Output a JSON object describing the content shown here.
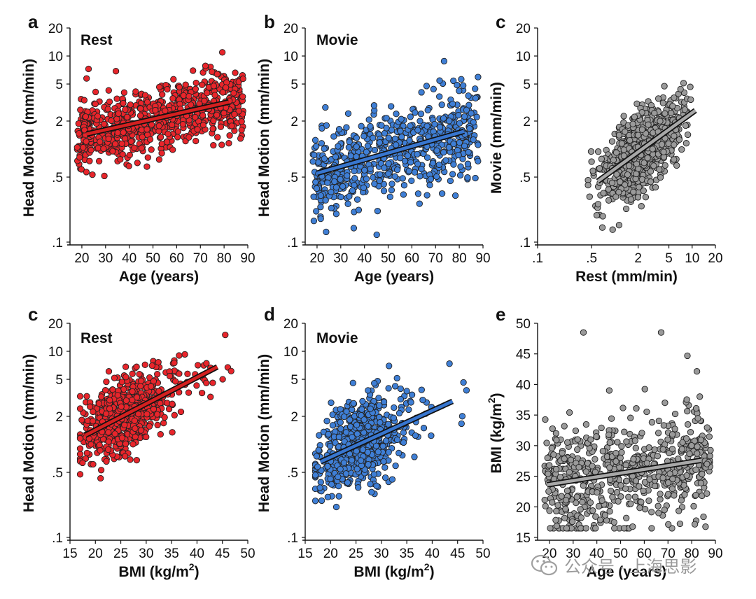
{
  "colors": {
    "red": "#e8252b",
    "blue": "#3f7fd6",
    "gray": "#9a9a9a",
    "line_red": "#d42020",
    "line_blue": "#3876cf",
    "line_gray": "#a8a8a8"
  },
  "watermark": {
    "icon": "wechat-icon",
    "text": "公众号 · 上海思影"
  },
  "chart_data": [
    {
      "id": "a",
      "type": "scatter",
      "panel_label": "a",
      "inset_label": "Rest",
      "xlabel": "Age (years)",
      "ylabel": "Head Motion (mm/min)",
      "xlim": [
        15,
        90
      ],
      "ylim": [
        0.1,
        20
      ],
      "yscale": "log",
      "xticks": [
        20,
        30,
        40,
        50,
        60,
        70,
        80,
        90
      ],
      "xtick_labels": [
        "20",
        "30",
        "40",
        "50",
        "60",
        "70",
        "80",
        "90"
      ],
      "yticks": [
        0.1,
        0.5,
        2,
        5,
        10,
        20
      ],
      "ytick_labels": [
        ".1",
        ".5",
        "2",
        "5",
        "10",
        "20"
      ],
      "fit": {
        "x": [
          22,
          82
        ],
        "y": [
          1.45,
          3.2
        ]
      },
      "generator": {
        "n": 700,
        "xdist": [
          18,
          88
        ],
        "x_func": "age",
        "y_base": [
          1.45,
          3.2
        ],
        "y_sigma": 0.45,
        "seed": 11
      }
    },
    {
      "id": "b",
      "type": "scatter",
      "panel_label": "b",
      "inset_label": "Movie",
      "xlabel": "Age (years)",
      "ylabel": "Head Motion (mm/min)",
      "xlim": [
        15,
        90
      ],
      "ylim": [
        0.1,
        20
      ],
      "yscale": "log",
      "xticks": [
        20,
        30,
        40,
        50,
        60,
        70,
        80,
        90
      ],
      "xtick_labels": [
        "20",
        "30",
        "40",
        "50",
        "60",
        "70",
        "80",
        "90"
      ],
      "yticks": [
        0.1,
        0.5,
        2,
        5,
        10,
        20
      ],
      "ytick_labels": [
        ".1",
        ".5",
        "2",
        "5",
        "10",
        "20"
      ],
      "fit": {
        "x": [
          20,
          82
        ],
        "y": [
          0.55,
          1.55
        ]
      },
      "generator": {
        "n": 650,
        "xdist": [
          18,
          88
        ],
        "x_func": "age",
        "y_base": [
          0.55,
          1.55
        ],
        "y_sigma": 0.55,
        "seed": 23
      }
    },
    {
      "id": "c1",
      "type": "scatter",
      "panel_label": "c",
      "inset_label": "",
      "xlabel": "Rest (mm/min)",
      "ylabel": "Movie (mm/min)",
      "xlim": [
        0.1,
        20
      ],
      "ylim": [
        0.1,
        20
      ],
      "xscale": "log",
      "yscale": "log",
      "xticks": [
        0.1,
        0.5,
        2,
        5,
        10,
        20
      ],
      "xtick_labels": [
        ".1",
        ".5",
        "2",
        "5",
        "10",
        "20"
      ],
      "yticks": [
        0.1,
        0.5,
        2,
        5,
        10,
        20
      ],
      "ytick_labels": [
        ".1",
        ".5",
        "2",
        "5",
        "10",
        "20"
      ],
      "fit": {
        "x": [
          0.6,
          11
        ],
        "y": [
          0.45,
          2.6
        ]
      },
      "generator": {
        "n": 700,
        "xdist": [
          0.45,
          14
        ],
        "x_func": "loggauss",
        "x_center": 2.2,
        "x_sigma": 0.6,
        "y_base": [
          0.45,
          2.6
        ],
        "y_sigma": 0.5,
        "seed": 37
      }
    },
    {
      "id": "c2",
      "type": "scatter",
      "panel_label": "c",
      "inset_label": "Rest",
      "xlabel": "BMI (kg/m",
      "xlabel_sup": "2",
      "xlabel_tail": ")",
      "ylabel": "Head Motion (mm/min)",
      "xlim": [
        15,
        50
      ],
      "ylim": [
        0.1,
        20
      ],
      "yscale": "log",
      "xticks": [
        15,
        20,
        25,
        30,
        35,
        40,
        45,
        50
      ],
      "xtick_labels": [
        "15",
        "20",
        "25",
        "30",
        "35",
        "40",
        "45",
        "50"
      ],
      "yticks": [
        0.1,
        0.5,
        2,
        5,
        10,
        20
      ],
      "ytick_labels": [
        ".1",
        ".5",
        "2",
        "5",
        "10",
        "20"
      ],
      "fit": {
        "x": [
          18,
          44
        ],
        "y": [
          1.25,
          6.8
        ]
      },
      "generator": {
        "n": 700,
        "xdist": [
          17,
          45
        ],
        "x_func": "bmi",
        "y_base": [
          1.25,
          6.8
        ],
        "y_sigma": 0.45,
        "seed": 41
      }
    },
    {
      "id": "d",
      "type": "scatter",
      "panel_label": "d",
      "inset_label": "Movie",
      "xlabel": "BMI (kg/m",
      "xlabel_sup": "2",
      "xlabel_tail": ")",
      "ylabel": "Head Motion (mm/min)",
      "xlim": [
        15,
        50
      ],
      "ylim": [
        0.1,
        20
      ],
      "yscale": "log",
      "xticks": [
        15,
        20,
        25,
        30,
        35,
        40,
        45,
        50
      ],
      "xtick_labels": [
        "15",
        "20",
        "25",
        "30",
        "35",
        "40",
        "45",
        "50"
      ],
      "yticks": [
        0.1,
        0.5,
        2,
        5,
        10,
        20
      ],
      "ytick_labels": [
        ".1",
        ".5",
        "2",
        "5",
        "10",
        "20"
      ],
      "fit": {
        "x": [
          18,
          44
        ],
        "y": [
          0.65,
          2.9
        ]
      },
      "generator": {
        "n": 620,
        "xdist": [
          17,
          45
        ],
        "x_func": "bmi",
        "y_base": [
          0.65,
          2.9
        ],
        "y_sigma": 0.55,
        "seed": 53
      }
    },
    {
      "id": "e",
      "type": "scatter",
      "panel_label": "e",
      "inset_label": "",
      "xlabel": "Age (years)",
      "ylabel": "BMI (kg/m",
      "ylabel_sup": "2",
      "ylabel_tail": ")",
      "xlim": [
        15,
        90
      ],
      "ylim": [
        15,
        50
      ],
      "xticks": [
        20,
        30,
        40,
        50,
        60,
        70,
        80,
        90
      ],
      "xtick_labels": [
        "20",
        "30",
        "40",
        "50",
        "60",
        "70",
        "80",
        "90"
      ],
      "yticks": [
        15,
        20,
        25,
        30,
        35,
        40,
        45,
        50
      ],
      "ytick_labels": [
        "15",
        "20",
        "25",
        "30",
        "35",
        "40",
        "45",
        "50"
      ],
      "fit": {
        "x": [
          19,
          84
        ],
        "y": [
          23.6,
          27.6
        ]
      },
      "generator": {
        "n": 620,
        "xdist": [
          18,
          88
        ],
        "x_func": "age",
        "y_base": [
          23.6,
          27.6
        ],
        "y_sigma": 4.0,
        "linear": true,
        "seed": 67
      }
    }
  ]
}
